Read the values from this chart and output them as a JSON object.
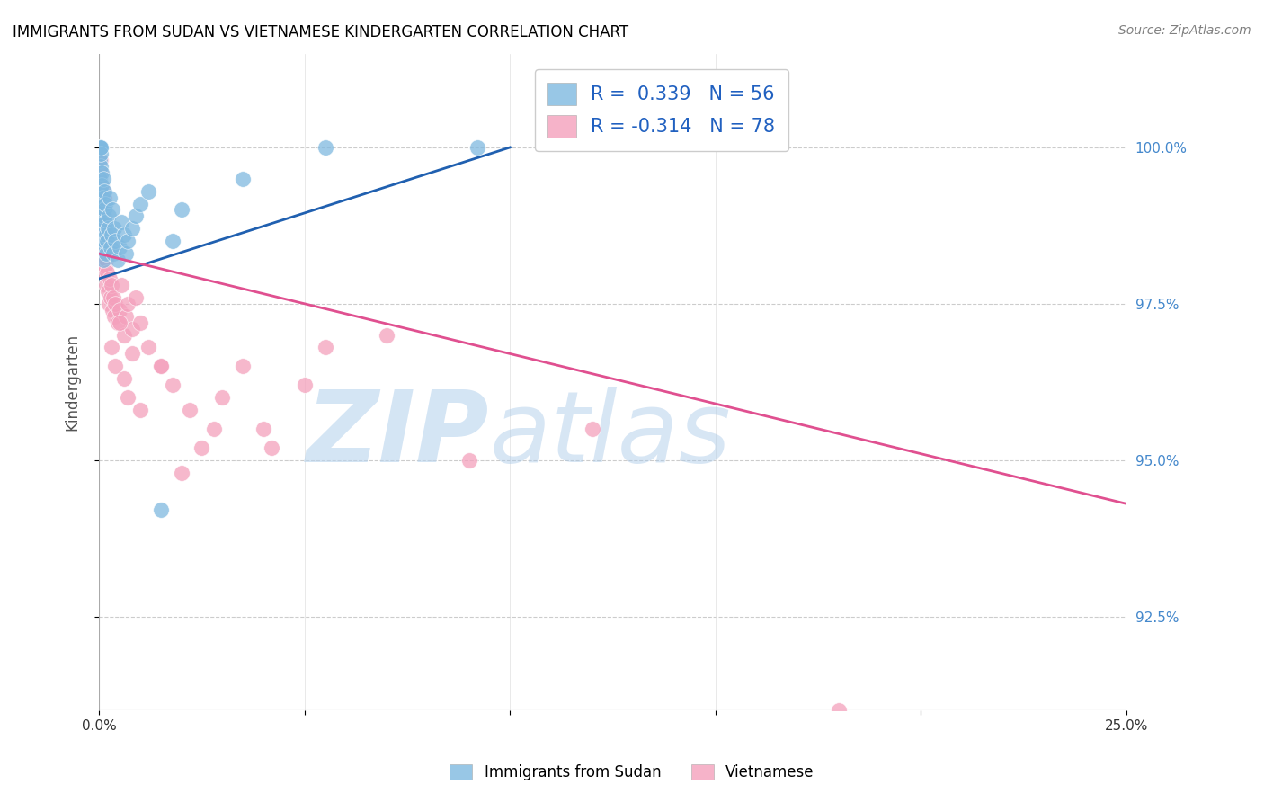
{
  "title": "IMMIGRANTS FROM SUDAN VS VIETNAMESE KINDERGARTEN CORRELATION CHART",
  "source": "Source: ZipAtlas.com",
  "ylabel": "Kindergarten",
  "xlim": [
    0.0,
    25.0
  ],
  "ylim": [
    91.0,
    101.5
  ],
  "yticks": [
    92.5,
    95.0,
    97.5,
    100.0
  ],
  "ytick_labels": [
    "92.5%",
    "95.0%",
    "97.5%",
    "100.0%"
  ],
  "xtick_labels": [
    "0.0%",
    "25.0%"
  ],
  "sudan_color": "#7fb9e0",
  "viet_color": "#f4a0bc",
  "trend_sudan_color": "#2060b0",
  "trend_viet_color": "#e05090",
  "sudan_r": 0.339,
  "sudan_n": 56,
  "viet_r": -0.314,
  "viet_n": 78,
  "sudan_trend_x0": 0.0,
  "sudan_trend_y0": 97.9,
  "sudan_trend_x1": 10.0,
  "sudan_trend_y1": 100.0,
  "viet_trend_x0": 0.0,
  "viet_trend_y0": 98.3,
  "viet_trend_x1": 25.0,
  "viet_trend_y1": 94.3,
  "sudan_x": [
    0.02,
    0.02,
    0.03,
    0.03,
    0.03,
    0.04,
    0.04,
    0.04,
    0.05,
    0.05,
    0.05,
    0.06,
    0.06,
    0.06,
    0.07,
    0.07,
    0.08,
    0.08,
    0.09,
    0.09,
    0.1,
    0.1,
    0.1,
    0.12,
    0.13,
    0.14,
    0.15,
    0.16,
    0.17,
    0.18,
    0.2,
    0.22,
    0.24,
    0.26,
    0.28,
    0.3,
    0.32,
    0.35,
    0.38,
    0.4,
    0.45,
    0.5,
    0.55,
    0.6,
    0.65,
    0.7,
    0.8,
    0.9,
    1.0,
    1.2,
    1.5,
    1.8,
    2.0,
    3.5,
    5.5,
    9.2
  ],
  "sudan_y": [
    99.2,
    99.8,
    100.0,
    100.0,
    99.5,
    100.0,
    99.7,
    99.3,
    99.9,
    100.0,
    98.5,
    99.6,
    98.8,
    99.1,
    99.4,
    98.7,
    99.0,
    98.4,
    99.2,
    98.6,
    99.5,
    98.9,
    98.2,
    99.3,
    99.0,
    98.5,
    98.8,
    99.1,
    98.3,
    98.6,
    98.5,
    98.7,
    98.9,
    99.2,
    98.4,
    98.6,
    99.0,
    98.3,
    98.7,
    98.5,
    98.2,
    98.4,
    98.8,
    98.6,
    98.3,
    98.5,
    98.7,
    98.9,
    99.1,
    99.3,
    94.2,
    98.5,
    99.0,
    99.5,
    100.0,
    100.0
  ],
  "viet_x": [
    0.02,
    0.02,
    0.03,
    0.03,
    0.04,
    0.04,
    0.04,
    0.05,
    0.05,
    0.05,
    0.05,
    0.06,
    0.06,
    0.07,
    0.07,
    0.08,
    0.08,
    0.09,
    0.09,
    0.1,
    0.1,
    0.1,
    0.12,
    0.12,
    0.13,
    0.14,
    0.15,
    0.16,
    0.17,
    0.18,
    0.2,
    0.22,
    0.24,
    0.26,
    0.28,
    0.3,
    0.32,
    0.35,
    0.38,
    0.4,
    0.45,
    0.5,
    0.55,
    0.6,
    0.65,
    0.7,
    0.8,
    0.9,
    1.0,
    1.2,
    1.5,
    1.8,
    2.2,
    2.8,
    3.5,
    4.2,
    5.5,
    7.0,
    9.0,
    12.0,
    0.3,
    0.4,
    0.5,
    0.6,
    0.7,
    0.8,
    1.0,
    1.5,
    2.0,
    2.5,
    3.0,
    4.0,
    5.0,
    0.08,
    0.09,
    0.1,
    0.12,
    18.0
  ],
  "viet_y": [
    99.5,
    98.8,
    99.3,
    98.5,
    99.6,
    98.7,
    99.0,
    99.8,
    98.3,
    99.1,
    98.6,
    99.4,
    98.2,
    99.0,
    98.5,
    98.8,
    99.2,
    98.4,
    99.0,
    98.7,
    99.3,
    98.0,
    98.9,
    98.5,
    98.3,
    98.6,
    98.1,
    98.4,
    98.2,
    97.8,
    98.0,
    97.7,
    97.5,
    97.9,
    97.6,
    97.8,
    97.4,
    97.6,
    97.3,
    97.5,
    97.2,
    97.4,
    97.8,
    97.0,
    97.3,
    97.5,
    97.1,
    97.6,
    97.2,
    96.8,
    96.5,
    96.2,
    95.8,
    95.5,
    96.5,
    95.2,
    96.8,
    97.0,
    95.0,
    95.5,
    96.8,
    96.5,
    97.2,
    96.3,
    96.0,
    96.7,
    95.8,
    96.5,
    94.8,
    95.2,
    96.0,
    95.5,
    96.2,
    98.8,
    99.0,
    98.5,
    99.2,
    91.0
  ]
}
